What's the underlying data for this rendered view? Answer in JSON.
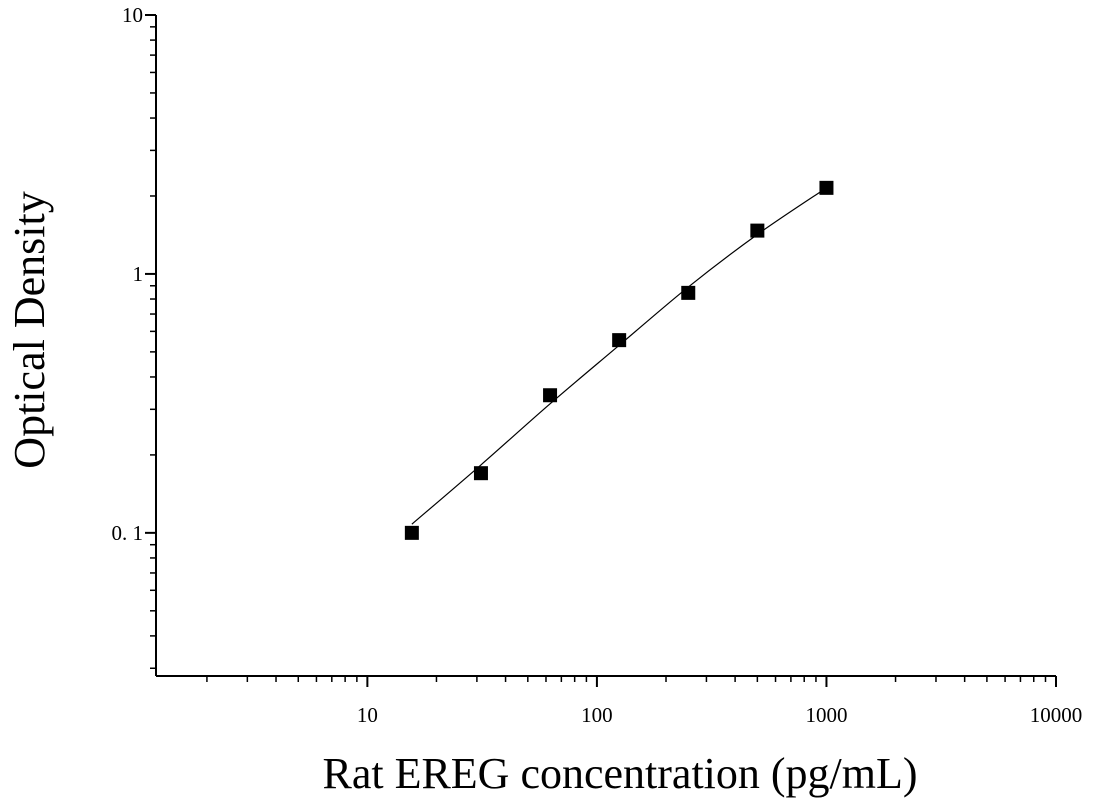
{
  "chart_data": {
    "type": "scatter",
    "title": "",
    "xlabel": "Rat EREG concentration (pg/mL)",
    "ylabel": "Optical Density",
    "x_scale": "log",
    "y_scale": "log",
    "xlim": [
      1.2,
      10000
    ],
    "ylim": [
      0.028,
      10
    ],
    "x_ticks": [
      {
        "value": 10,
        "label": "10"
      },
      {
        "value": 100,
        "label": "100"
      },
      {
        "value": 1000,
        "label": "1000"
      },
      {
        "value": 10000,
        "label": "10000"
      }
    ],
    "y_ticks": [
      {
        "value": 0.1,
        "label": "0. 1"
      },
      {
        "value": 1,
        "label": "1"
      },
      {
        "value": 10,
        "label": "10"
      }
    ],
    "grid": false,
    "legend": "none",
    "series": [
      {
        "marker": "square",
        "color": "#000000",
        "points": [
          {
            "x": 15.625,
            "y": 0.1
          },
          {
            "x": 31.25,
            "y": 0.17
          },
          {
            "x": 62.5,
            "y": 0.34
          },
          {
            "x": 125,
            "y": 0.555
          },
          {
            "x": 250,
            "y": 0.845
          },
          {
            "x": 500,
            "y": 1.47
          },
          {
            "x": 1000,
            "y": 2.15
          }
        ]
      }
    ],
    "fit_curve": {
      "color": "#000000",
      "points": [
        {
          "x": 15.625,
          "y": 0.108
        },
        {
          "x": 31.25,
          "y": 0.183
        },
        {
          "x": 62.5,
          "y": 0.315
        },
        {
          "x": 125,
          "y": 0.53
        },
        {
          "x": 250,
          "y": 0.89
        },
        {
          "x": 500,
          "y": 1.42
        },
        {
          "x": 1000,
          "y": 2.15
        }
      ]
    }
  }
}
